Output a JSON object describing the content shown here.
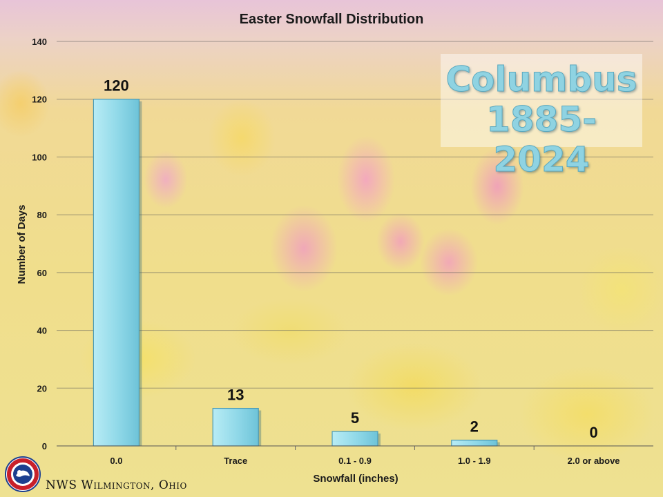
{
  "chart_data": {
    "type": "bar",
    "title": "Easter Snowfall Distribution",
    "xlabel": "Snowfall (inches)",
    "ylabel": "Number of Days",
    "categories": [
      "0.0",
      "Trace",
      "0.1 - 0.9",
      "1.0 - 1.9",
      "2.0 or above"
    ],
    "values": [
      120,
      13,
      5,
      2,
      0
    ],
    "ylim": [
      0,
      140
    ],
    "yticks": [
      0,
      20,
      40,
      60,
      80,
      100,
      120,
      140
    ],
    "grid": true,
    "bar_color": "#8fd8e8",
    "bar_edge_color": "#4a9ab5"
  },
  "annotation": {
    "line1": "Columbus",
    "line2": "1885-2024",
    "color": "#8fd3e2"
  },
  "footer": {
    "office": "NWS Wilmington, Ohio",
    "logo_icon": "nws-logo-icon"
  }
}
